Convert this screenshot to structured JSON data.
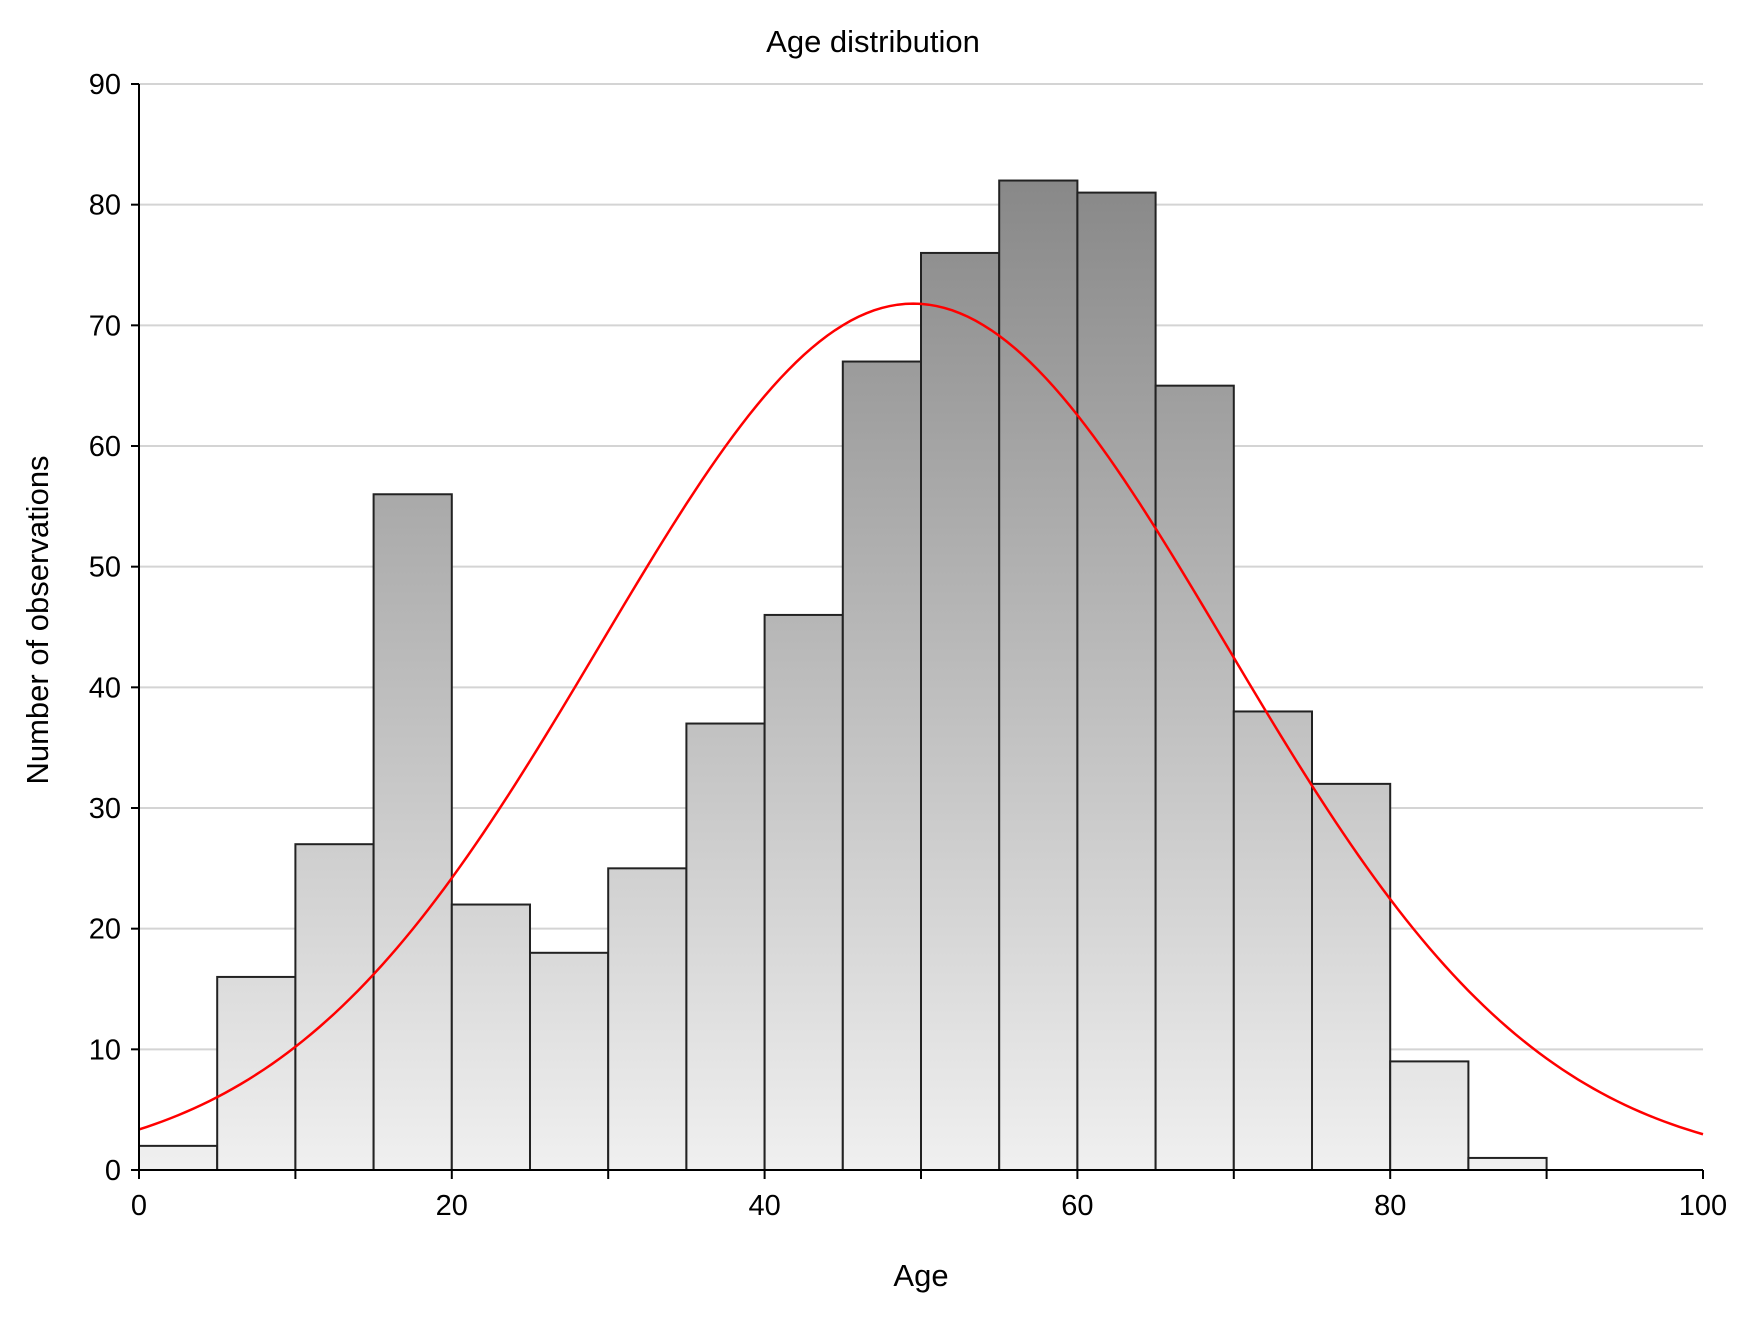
{
  "chart_data": {
    "type": "bar",
    "title": "Age distribution",
    "xlabel": "Age",
    "ylabel": "Number of observations",
    "xlim": [
      0,
      100
    ],
    "ylim": [
      0,
      90
    ],
    "x_ticks": [
      0,
      20,
      40,
      60,
      80,
      100
    ],
    "y_ticks": [
      0,
      10,
      20,
      30,
      40,
      50,
      60,
      70,
      80,
      90
    ],
    "grid": "horizontal",
    "bins": [
      {
        "start": 0,
        "end": 5,
        "count": 2
      },
      {
        "start": 5,
        "end": 10,
        "count": 16
      },
      {
        "start": 10,
        "end": 15,
        "count": 27
      },
      {
        "start": 15,
        "end": 20,
        "count": 56
      },
      {
        "start": 20,
        "end": 25,
        "count": 22
      },
      {
        "start": 25,
        "end": 30,
        "count": 18
      },
      {
        "start": 30,
        "end": 35,
        "count": 25
      },
      {
        "start": 35,
        "end": 40,
        "count": 37
      },
      {
        "start": 40,
        "end": 45,
        "count": 46
      },
      {
        "start": 45,
        "end": 50,
        "count": 67
      },
      {
        "start": 50,
        "end": 55,
        "count": 76
      },
      {
        "start": 55,
        "end": 60,
        "count": 82
      },
      {
        "start": 60,
        "end": 65,
        "count": 81
      },
      {
        "start": 65,
        "end": 70,
        "count": 65
      },
      {
        "start": 70,
        "end": 75,
        "count": 38
      },
      {
        "start": 75,
        "end": 80,
        "count": 32
      },
      {
        "start": 80,
        "end": 85,
        "count": 9
      },
      {
        "start": 85,
        "end": 90,
        "count": 1
      }
    ],
    "fitted_curve": {
      "type": "normal",
      "mean": 49.5,
      "peak": 71.8,
      "sd": 20.0,
      "color": "#ff0000"
    },
    "colors": {
      "bar_light": "#f0f0f0",
      "bar_dark": "#878787",
      "bar_outline": "#222222",
      "grid": "#d4d4d4",
      "axis": "#000000"
    }
  }
}
